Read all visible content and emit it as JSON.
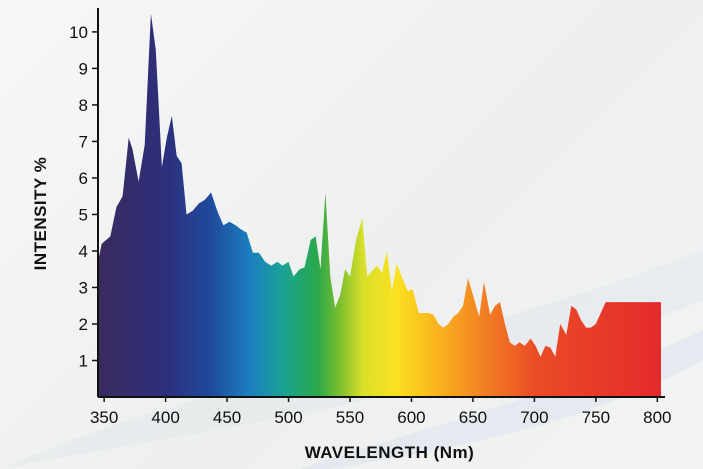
{
  "chart_data": {
    "type": "area",
    "title": "",
    "xlabel": "WAVELENGTH (Nm)",
    "ylabel": "INTENSITY %",
    "xlim": [
      345,
      803
    ],
    "ylim": [
      0,
      10.6
    ],
    "x_ticks": [
      350,
      400,
      450,
      500,
      550,
      600,
      650,
      700,
      750,
      800
    ],
    "y_ticks": [
      1,
      2,
      3,
      4,
      5,
      6,
      7,
      8,
      9,
      10
    ],
    "grid": false,
    "legend": "none",
    "fill": "spectral gradient (violet to red)",
    "series": [
      {
        "x": [
          345,
          348,
          355,
          360,
          365,
          370,
          373,
          378,
          383,
          388,
          392,
          397,
          401,
          405,
          409,
          413,
          417,
          422,
          427,
          432,
          437,
          442,
          447,
          452,
          457,
          461,
          466,
          471,
          476,
          481,
          486,
          491,
          495,
          500,
          504,
          509,
          513,
          518,
          522,
          526,
          530,
          534,
          538,
          542,
          546,
          550,
          555,
          560,
          564,
          568,
          572,
          576,
          580,
          584,
          588,
          592,
          597,
          601,
          606,
          610,
          614,
          618,
          622,
          626,
          630,
          634,
          638,
          642,
          646,
          650,
          655,
          659,
          664,
          668,
          672,
          676,
          680,
          684,
          688,
          692,
          697,
          701,
          705,
          709,
          713,
          717,
          721,
          726,
          730,
          734,
          738,
          742,
          746,
          750,
          754,
          758,
          762,
          766,
          771,
          775,
          779,
          783,
          787,
          791,
          795,
          799,
          803
        ],
        "values": [
          3.7,
          4.2,
          4.4,
          5.2,
          5.5,
          7.1,
          6.8,
          5.9,
          6.9,
          10.5,
          9.5,
          6.3,
          7.1,
          7.7,
          6.6,
          6.4,
          5.0,
          5.1,
          5.3,
          5.4,
          5.6,
          5.1,
          4.7,
          4.8,
          4.7,
          4.6,
          4.5,
          3.95,
          3.95,
          3.7,
          3.6,
          3.7,
          3.6,
          3.7,
          3.3,
          3.5,
          3.55,
          4.3,
          4.4,
          3.5,
          5.6,
          3.3,
          2.45,
          2.8,
          3.5,
          3.3,
          4.3,
          4.9,
          3.3,
          3.45,
          3.6,
          3.4,
          4.0,
          2.9,
          3.65,
          3.3,
          2.9,
          2.95,
          2.3,
          2.3,
          2.3,
          2.25,
          2.0,
          1.9,
          2.0,
          2.2,
          2.3,
          2.5,
          3.25,
          2.8,
          2.2,
          3.15,
          2.25,
          2.5,
          2.6,
          2.0,
          1.5,
          1.4,
          1.5,
          1.4,
          1.6,
          1.4,
          1.1,
          1.4,
          1.35,
          1.1,
          2.0,
          1.7,
          2.5,
          2.4,
          2.1,
          1.9,
          1.9,
          2.0,
          2.3,
          2.6,
          2.6,
          2.6,
          2.6,
          2.6,
          2.6,
          2.6,
          2.6,
          2.6,
          2.6,
          2.6,
          2.6
        ]
      }
    ]
  }
}
